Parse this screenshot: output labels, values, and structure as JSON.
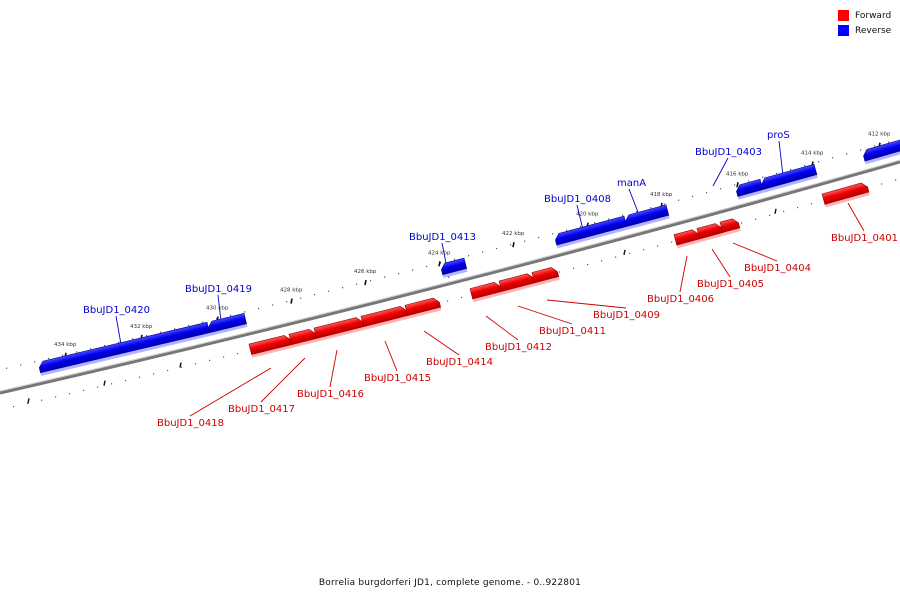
{
  "legend": {
    "forward_label": "Forward",
    "reverse_label": "Reverse",
    "forward_color": "#ff0000",
    "reverse_color": "#0000ff"
  },
  "caption": "Borrelia burgdorferi JD1, complete genome. - 0..922801",
  "ticks": [
    "412 kbp",
    "414 kbp",
    "416 kbp",
    "418 kbp",
    "420 kbp",
    "422 kbp",
    "424 kbp",
    "426 kbp",
    "428 kbp",
    "430 kbp",
    "432 kbp",
    "434 kbp"
  ],
  "genes": {
    "forward": [
      "BbuJD1_0401",
      "BbuJD1_0404",
      "BbuJD1_0405",
      "BbuJD1_0406",
      "BbuJD1_0409",
      "BbuJD1_0411",
      "BbuJD1_0412",
      "BbuJD1_0414",
      "BbuJD1_0415",
      "BbuJD1_0416",
      "BbuJD1_0417",
      "BbuJD1_0418"
    ],
    "reverse": [
      "proS",
      "BbuJD1_0403",
      "manA",
      "BbuJD1_0408",
      "BbuJD1_0413",
      "BbuJD1_0419",
      "BbuJD1_0420"
    ]
  }
}
